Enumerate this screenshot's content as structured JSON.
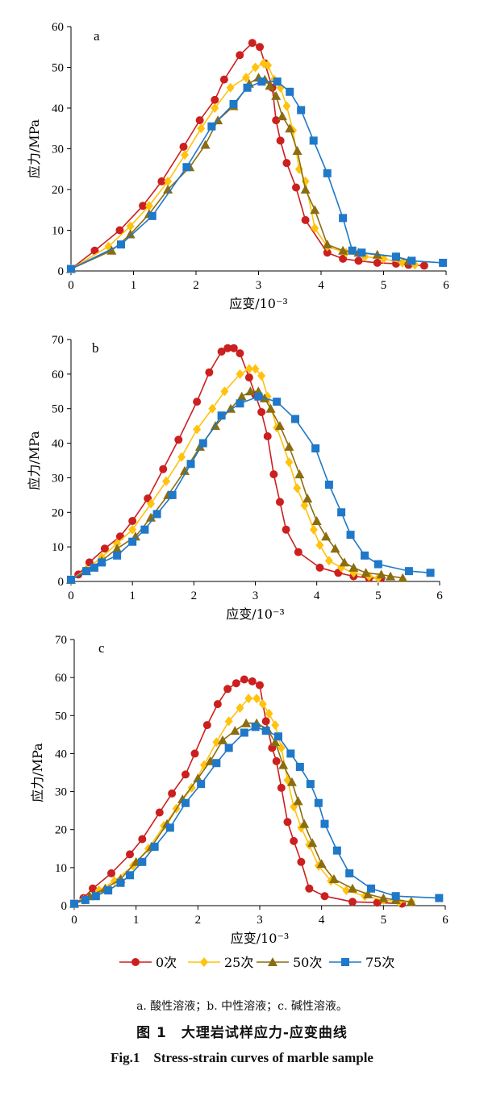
{
  "chart_data": [
    {
      "type": "line",
      "panel_label": "a",
      "xlabel": "应变/10⁻³",
      "ylabel": "应力/MPa",
      "xlim": [
        0,
        6
      ],
      "ylim": [
        0,
        60
      ],
      "xticks": [
        0,
        1,
        2,
        3,
        4,
        5,
        6
      ],
      "yticks": [
        0,
        10,
        20,
        30,
        40,
        50,
        60
      ],
      "series": [
        {
          "name": "0次",
          "x": [
            0,
            0.38,
            0.78,
            1.15,
            1.45,
            1.8,
            2.06,
            2.3,
            2.45,
            2.7,
            2.9,
            3.02,
            3.1,
            3.22,
            3.28,
            3.35,
            3.45,
            3.6,
            3.75,
            4.1,
            4.35,
            4.6,
            4.9,
            5.2,
            5.4,
            5.65
          ],
          "y": [
            0.5,
            5,
            10,
            16,
            22,
            30.5,
            37,
            42,
            47,
            53,
            56,
            55,
            51,
            45,
            37,
            32,
            26.5,
            20.5,
            12.5,
            4.5,
            3,
            2.5,
            2,
            1.8,
            1.5,
            1.3
          ]
        },
        {
          "name": "25次",
          "x": [
            0,
            0.6,
            0.95,
            1.25,
            1.55,
            1.82,
            2.08,
            2.3,
            2.55,
            2.8,
            2.95,
            3.08,
            3.15,
            3.25,
            3.35,
            3.45,
            3.55,
            3.65,
            3.75,
            3.9,
            4.1,
            4.4,
            4.7,
            5.0,
            5.3,
            5.5
          ],
          "y": [
            0.5,
            6,
            11,
            16,
            22,
            28.5,
            35,
            40,
            45,
            47.5,
            50,
            51,
            50.5,
            47,
            45,
            40.5,
            34.5,
            25,
            22,
            10.5,
            6,
            4.5,
            3.5,
            3,
            2,
            1.5
          ]
        },
        {
          "name": "50次",
          "x": [
            0,
            0.65,
            0.95,
            1.25,
            1.55,
            1.9,
            2.15,
            2.35,
            2.6,
            2.85,
            3.0,
            3.1,
            3.18,
            3.28,
            3.38,
            3.5,
            3.62,
            3.75,
            3.9,
            4.1,
            4.35,
            4.6,
            4.9,
            5.2,
            5.4
          ],
          "y": [
            0.5,
            5,
            9,
            14,
            20,
            25.5,
            31,
            37,
            40.5,
            46,
            47.5,
            47,
            45.5,
            43,
            38,
            35,
            29.5,
            20,
            15,
            6.5,
            5,
            4.5,
            4,
            3.5,
            2.5
          ]
        },
        {
          "name": "75次",
          "x": [
            0,
            0.8,
            1.3,
            1.85,
            2.25,
            2.6,
            2.82,
            3.05,
            3.3,
            3.5,
            3.68,
            3.88,
            4.1,
            4.35,
            4.5,
            4.65,
            5.2,
            5.45,
            5.95
          ],
          "y": [
            0.5,
            6.5,
            13.5,
            25.5,
            35.5,
            41,
            45,
            46.5,
            46.5,
            44,
            39.5,
            32,
            24,
            13,
            5,
            4.5,
            3.5,
            2.5,
            2
          ]
        }
      ]
    },
    {
      "type": "line",
      "panel_label": "b",
      "xlabel": "应变/10⁻³",
      "ylabel": "应力/MPa",
      "xlim": [
        0,
        6
      ],
      "ylim": [
        0,
        70
      ],
      "xticks": [
        0,
        1,
        2,
        3,
        4,
        5,
        6
      ],
      "yticks": [
        0,
        10,
        20,
        30,
        40,
        50,
        60,
        70
      ],
      "series": [
        {
          "name": "0次",
          "x": [
            0,
            0.12,
            0.3,
            0.55,
            0.8,
            1.0,
            1.25,
            1.5,
            1.75,
            2.05,
            2.25,
            2.45,
            2.55,
            2.65,
            2.75,
            2.9,
            3.0,
            3.1,
            3.2,
            3.3,
            3.4,
            3.5,
            3.7,
            4.05,
            4.35,
            4.6,
            4.85,
            5.05
          ],
          "y": [
            0.5,
            2,
            5.5,
            9.5,
            13,
            17.5,
            24,
            32.5,
            41,
            52,
            60.5,
            66.5,
            67.5,
            67.5,
            66,
            59,
            54,
            49,
            42,
            31,
            23,
            15,
            8.5,
            4,
            2.5,
            1.5,
            1,
            1
          ]
        },
        {
          "name": "25次",
          "x": [
            0,
            0.25,
            0.5,
            0.75,
            1.0,
            1.3,
            1.55,
            1.8,
            2.05,
            2.3,
            2.5,
            2.75,
            2.9,
            3.0,
            3.1,
            3.2,
            3.35,
            3.55,
            3.68,
            3.8,
            3.95,
            4.05,
            4.2,
            4.4,
            4.6,
            4.85,
            5.0
          ],
          "y": [
            0.5,
            3.5,
            7,
            11,
            15,
            22.5,
            29,
            36,
            44,
            50,
            55,
            60,
            61.5,
            61.5,
            59.5,
            53.5,
            44.5,
            34.5,
            27,
            22,
            15,
            10.5,
            6,
            4,
            2.5,
            1.5,
            1
          ]
        },
        {
          "name": "50次",
          "x": [
            0,
            0.25,
            0.5,
            0.75,
            1.05,
            1.3,
            1.58,
            1.85,
            2.1,
            2.35,
            2.6,
            2.78,
            2.92,
            3.05,
            3.15,
            3.25,
            3.4,
            3.55,
            3.72,
            3.85,
            4.0,
            4.15,
            4.3,
            4.45,
            4.6,
            4.8,
            5.05,
            5.2,
            5.4
          ],
          "y": [
            0.5,
            3,
            6,
            9.5,
            13,
            18.5,
            25,
            32,
            39,
            45,
            50,
            53.5,
            55,
            55,
            53,
            50,
            45,
            39,
            31,
            24,
            17.5,
            13,
            9.5,
            5.5,
            4,
            2.5,
            2,
            1.5,
            1
          ]
        },
        {
          "name": "75次",
          "x": [
            0,
            0.25,
            0.38,
            0.5,
            0.75,
            1.0,
            1.2,
            1.4,
            1.65,
            1.95,
            2.15,
            2.45,
            2.75,
            3.05,
            3.35,
            3.65,
            3.98,
            4.2,
            4.4,
            4.55,
            4.78,
            5.0,
            5.5,
            5.85
          ],
          "y": [
            0.5,
            3,
            4,
            5.5,
            7.5,
            11.5,
            15,
            19.5,
            25,
            34,
            40,
            48,
            51.5,
            53.5,
            52,
            47,
            38.5,
            28,
            20,
            13.5,
            7.5,
            5,
            3,
            2.5
          ]
        }
      ]
    },
    {
      "type": "line",
      "panel_label": "c",
      "xlabel": "应变/10⁻³",
      "ylabel": "应力/MPa",
      "xlim": [
        0,
        6
      ],
      "ylim": [
        0,
        70
      ],
      "xticks": [
        0,
        1,
        2,
        3,
        4,
        5,
        6
      ],
      "yticks": [
        0,
        10,
        20,
        30,
        40,
        50,
        60,
        70
      ],
      "series": [
        {
          "name": "0次",
          "x": [
            0,
            0.15,
            0.3,
            0.6,
            0.9,
            1.1,
            1.38,
            1.58,
            1.8,
            1.95,
            2.15,
            2.32,
            2.48,
            2.62,
            2.75,
            2.88,
            3.0,
            3.1,
            3.2,
            3.27,
            3.35,
            3.45,
            3.55,
            3.67,
            3.8,
            4.05,
            4.5,
            4.9,
            5.3
          ],
          "y": [
            0.5,
            2,
            4.5,
            8.5,
            13.5,
            17.5,
            24.5,
            29.5,
            34.5,
            40,
            47.5,
            53,
            57,
            58.5,
            59.5,
            59,
            58,
            48.5,
            41.5,
            38,
            31,
            22,
            17,
            11.5,
            4.5,
            2.5,
            1,
            0.8,
            0.5
          ]
        },
        {
          "name": "25次",
          "x": [
            0,
            0.15,
            0.4,
            0.65,
            0.95,
            1.2,
            1.45,
            1.65,
            1.9,
            2.1,
            2.3,
            2.5,
            2.68,
            2.82,
            2.95,
            3.05,
            3.15,
            3.25,
            3.35,
            3.45,
            3.55,
            3.67,
            3.8,
            3.95,
            4.15,
            4.4,
            4.7,
            5.0,
            5.25,
            5.45
          ],
          "y": [
            0.5,
            1.5,
            4,
            6.5,
            10.5,
            15,
            21,
            25.5,
            31,
            37,
            43,
            48.5,
            52,
            54.5,
            54.5,
            53,
            50.5,
            47.5,
            41.5,
            33,
            26,
            20.5,
            16,
            10.5,
            6.5,
            4,
            2.5,
            1.5,
            1,
            1
          ]
        },
        {
          "name": "50次",
          "x": [
            0,
            0.25,
            0.5,
            0.75,
            1.0,
            1.25,
            1.5,
            1.75,
            2.0,
            2.2,
            2.4,
            2.6,
            2.78,
            2.95,
            3.12,
            3.25,
            3.38,
            3.52,
            3.62,
            3.72,
            3.85,
            4.0,
            4.2,
            4.5,
            4.75,
            5.0,
            5.2,
            5.45
          ],
          "y": [
            0.5,
            2.5,
            4.5,
            7,
            11.5,
            15.5,
            21.5,
            28,
            33.5,
            38,
            43.5,
            46,
            48,
            48,
            46.5,
            43,
            37,
            32.5,
            27.5,
            21.5,
            16.5,
            11,
            7,
            4.5,
            3,
            2,
            1.5,
            1
          ]
        },
        {
          "name": "75次",
          "x": [
            0,
            0.18,
            0.35,
            0.55,
            0.75,
            0.9,
            1.1,
            1.3,
            1.55,
            1.8,
            2.05,
            2.3,
            2.5,
            2.75,
            2.93,
            3.1,
            3.3,
            3.5,
            3.65,
            3.82,
            3.95,
            4.05,
            4.25,
            4.45,
            4.8,
            5.2,
            5.9
          ],
          "y": [
            0.5,
            1.5,
            2.5,
            4,
            6,
            8,
            11.5,
            15.5,
            20.5,
            27,
            32,
            37.5,
            41.5,
            45.5,
            47,
            46,
            44.5,
            40,
            36.5,
            32,
            27,
            21.5,
            14.5,
            8.5,
            4.5,
            2.5,
            2
          ]
        }
      ]
    }
  ],
  "legend": [
    {
      "label": "0次",
      "color": "#cc1f1f",
      "marker": "circle"
    },
    {
      "label": "25次",
      "color": "#ffc20e",
      "marker": "diamond"
    },
    {
      "label": "50次",
      "color": "#8b6d10",
      "marker": "triangle"
    },
    {
      "label": "75次",
      "color": "#1f78c8",
      "marker": "square"
    }
  ],
  "captions": {
    "subcaption": "a. 酸性溶液；b. 中性溶液；c. 碱性溶液。",
    "title_cn": "图 1　大理岩试样应力-应变曲线",
    "title_en": "Fig.1　Stress-strain curves of marble sample"
  }
}
